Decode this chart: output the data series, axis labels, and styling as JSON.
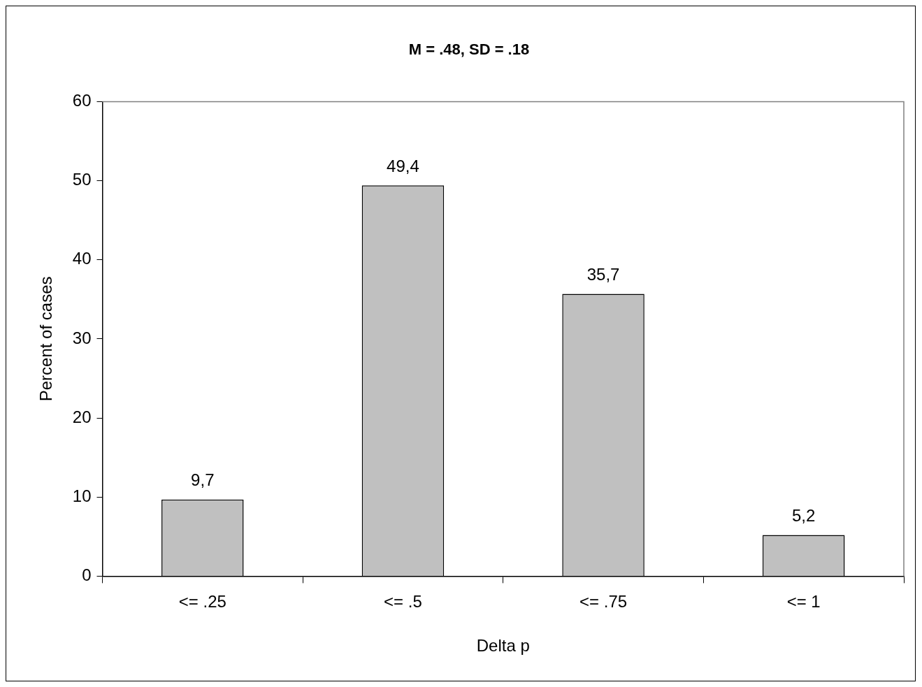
{
  "chart_data": {
    "type": "bar",
    "title": "M = .48, SD = .18",
    "xlabel": "Delta p",
    "ylabel": "Percent of cases",
    "categories": [
      "<= .25",
      "<= .5",
      "<= .75",
      "<= 1"
    ],
    "values": [
      9.7,
      49.4,
      35.7,
      5.2
    ],
    "value_labels": [
      "9,7",
      "49,4",
      "35,7",
      "5,2"
    ],
    "color": "#c0c0c0",
    "ylim": [
      0,
      60
    ],
    "yticks": [
      0,
      10,
      20,
      30,
      40,
      50,
      60
    ],
    "grid": false,
    "legend": false
  }
}
